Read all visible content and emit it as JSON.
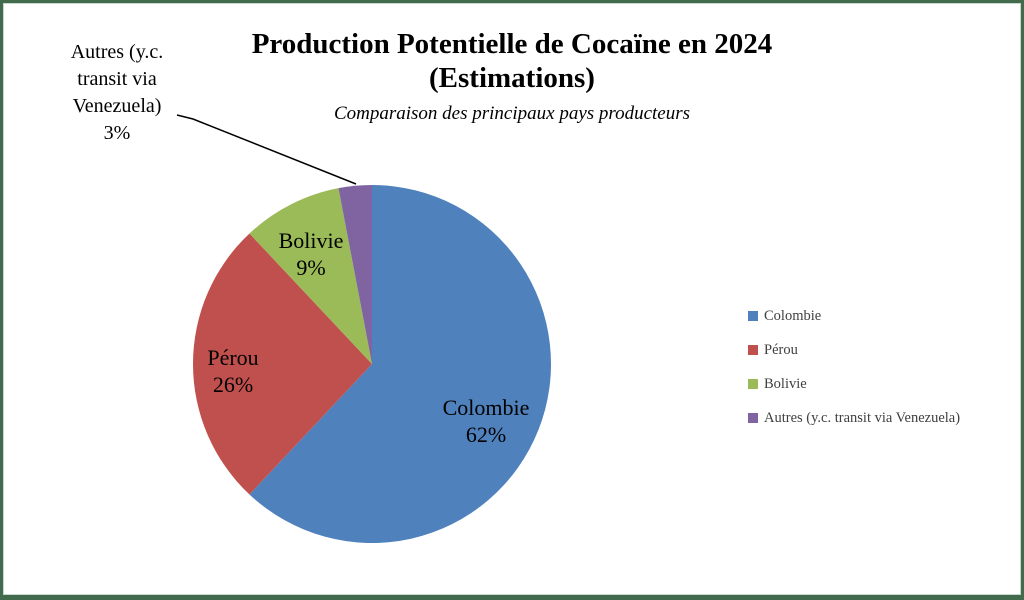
{
  "chart_data": {
    "type": "pie",
    "title": "Production Potentielle de Cocaïne en 2024 (Estimations)",
    "title_line1": "Production Potentielle de Cocaïne en 2024",
    "title_line2": "(Estimations)",
    "subtitle": "Comparaison des principaux pays producteurs",
    "legend_position": "right",
    "start_angle_deg": 0,
    "direction": "clockwise",
    "slices": [
      {
        "label": "Colombie",
        "value": 62,
        "pct_label": "62%",
        "color": "#4F81BD"
      },
      {
        "label": "Pérou",
        "value": 26,
        "pct_label": "26%",
        "color": "#C0504D"
      },
      {
        "label": "Bolivie",
        "value": 9,
        "pct_label": "9%",
        "color": "#9BBB59"
      },
      {
        "label": "Autres (y.c. transit via Venezuela)",
        "value": 3,
        "pct_label": "3%",
        "color": "#8064A2"
      }
    ],
    "frame_color": "#426b4e"
  }
}
